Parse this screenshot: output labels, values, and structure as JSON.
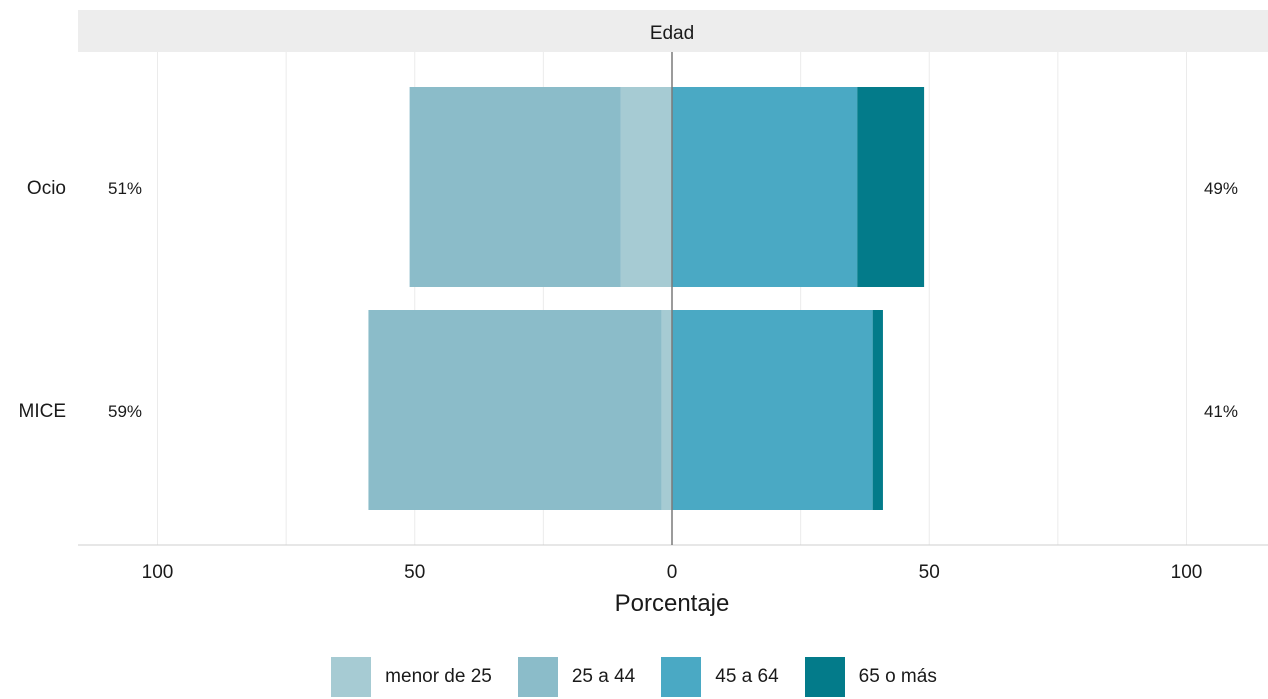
{
  "chart_data": {
    "type": "bar",
    "orientation": "horizontal",
    "stacking": "diverging",
    "facet_label": "Edad",
    "xlabel": "Porcentaje",
    "ylabel": "",
    "xlim": [
      -100,
      100
    ],
    "x_ticks": [
      -100,
      -50,
      0,
      50,
      100
    ],
    "x_tick_labels": [
      "100",
      "50",
      "0",
      "50",
      "100"
    ],
    "categories": [
      "Ocio",
      "MICE"
    ],
    "series": [
      {
        "name": "menor de 25",
        "side": "left",
        "color": "#a6cbd3",
        "values": [
          10,
          2
        ]
      },
      {
        "name": "25 a 44",
        "side": "left",
        "color": "#8bbcc9",
        "values": [
          41,
          57
        ]
      },
      {
        "name": "45 a 64",
        "side": "right",
        "color": "#4aa9c4",
        "values": [
          36,
          39
        ]
      },
      {
        "name": "65 o más",
        "side": "right",
        "color": "#037b8a",
        "values": [
          13,
          2
        ]
      }
    ],
    "left_totals": [
      "51%",
      "59%"
    ],
    "right_totals": [
      "49%",
      "41%"
    ],
    "grid": true,
    "legend_position": "bottom"
  }
}
